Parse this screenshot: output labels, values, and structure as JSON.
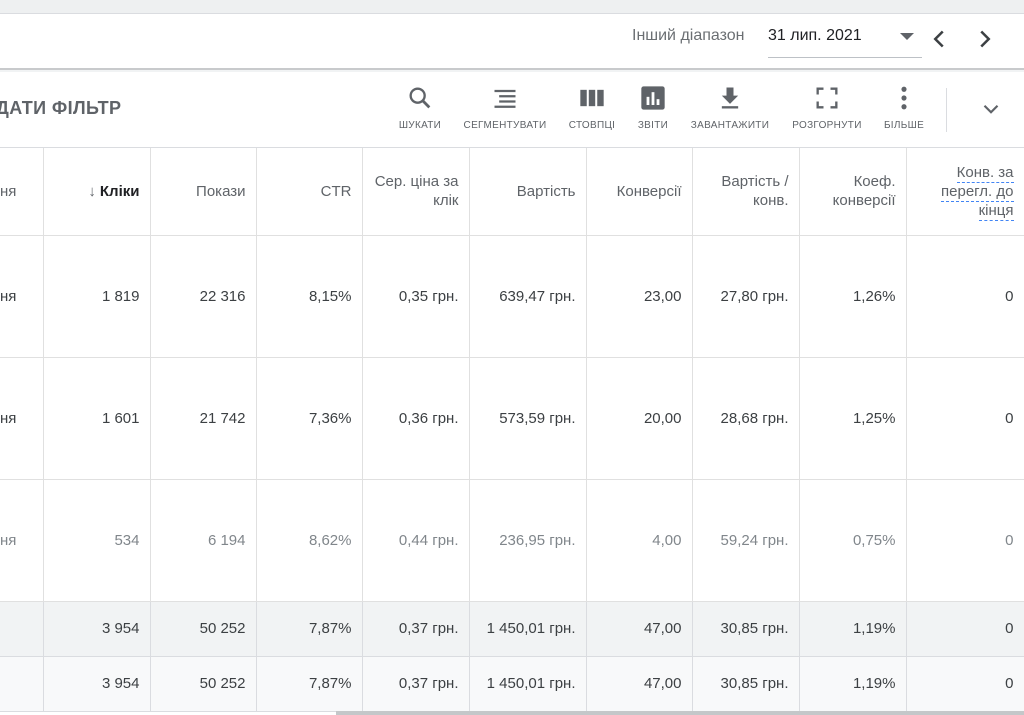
{
  "date_range": {
    "label": "Інший діапазон",
    "value": "31 лип. 2021"
  },
  "toolbar": {
    "add_filter_label": "ДАТИ ФІЛЬТР",
    "search_label": "ШУКАТИ",
    "segment_label": "СЕГМЕНТУВАТИ",
    "columns_label": "СТОВПЦІ",
    "reports_label": "ЗВІТИ",
    "download_label": "ЗАВАНТАЖИТИ",
    "expand_label": "РОЗГОРНУТИ",
    "more_label": "БІЛЬШЕ"
  },
  "table": {
    "first_col_header": "ня",
    "headers": {
      "clicks": "Кліки",
      "impressions": "Покази",
      "ctr": "CTR",
      "avg_cpc": "Сер. ціна за клік",
      "cost": "Вартість",
      "conversions": "Конверсії",
      "cost_per_conv": "Вартість / конв.",
      "conv_rate": "Коеф. конверсії",
      "view_through": "Конв. за перегл. до кінця"
    },
    "rows": [
      {
        "label": "ня",
        "clicks": "1 819",
        "impressions": "22 316",
        "ctr": "8,15%",
        "avg_cpc": "0,35 грн.",
        "cost": "639,47 грн.",
        "conversions": "23,00",
        "cost_per_conv": "27,80 грн.",
        "conv_rate": "1,26%",
        "view_through": "0"
      },
      {
        "label": "ня",
        "clicks": "1 601",
        "impressions": "21 742",
        "ctr": "7,36%",
        "avg_cpc": "0,36 грн.",
        "cost": "573,59 грн.",
        "conversions": "20,00",
        "cost_per_conv": "28,68 грн.",
        "conv_rate": "1,25%",
        "view_through": "0"
      },
      {
        "label": "ня",
        "clicks": "534",
        "impressions": "6 194",
        "ctr": "8,62%",
        "avg_cpc": "0,44 грн.",
        "cost": "236,95 грн.",
        "conversions": "4,00",
        "cost_per_conv": "59,24 грн.",
        "conv_rate": "0,75%",
        "view_through": "0"
      }
    ],
    "totals": [
      {
        "clicks": "3 954",
        "impressions": "50 252",
        "ctr": "7,87%",
        "avg_cpc": "0,37 грн.",
        "cost": "1 450,01 грн.",
        "conversions": "47,00",
        "cost_per_conv": "30,85 грн.",
        "conv_rate": "1,19%",
        "view_through": "0"
      },
      {
        "clicks": "3 954",
        "impressions": "50 252",
        "ctr": "7,87%",
        "avg_cpc": "0,37 грн.",
        "cost": "1 450,01 грн.",
        "conversions": "47,00",
        "cost_per_conv": "30,85 грн.",
        "conv_rate": "1,19%",
        "view_through": "0"
      }
    ]
  },
  "colors": {
    "icon": "#5f6368",
    "dashed_underline": "#4285f4",
    "total_row_bg": "#f1f3f4"
  },
  "icons": [
    "search-icon",
    "segment-icon",
    "columns-icon",
    "reports-icon",
    "download-icon",
    "expand-icon",
    "more-vert-icon",
    "chevron-left-icon",
    "chevron-right-icon",
    "chevron-down-icon",
    "sort-arrow-down-icon",
    "dropdown-caret-icon"
  ]
}
